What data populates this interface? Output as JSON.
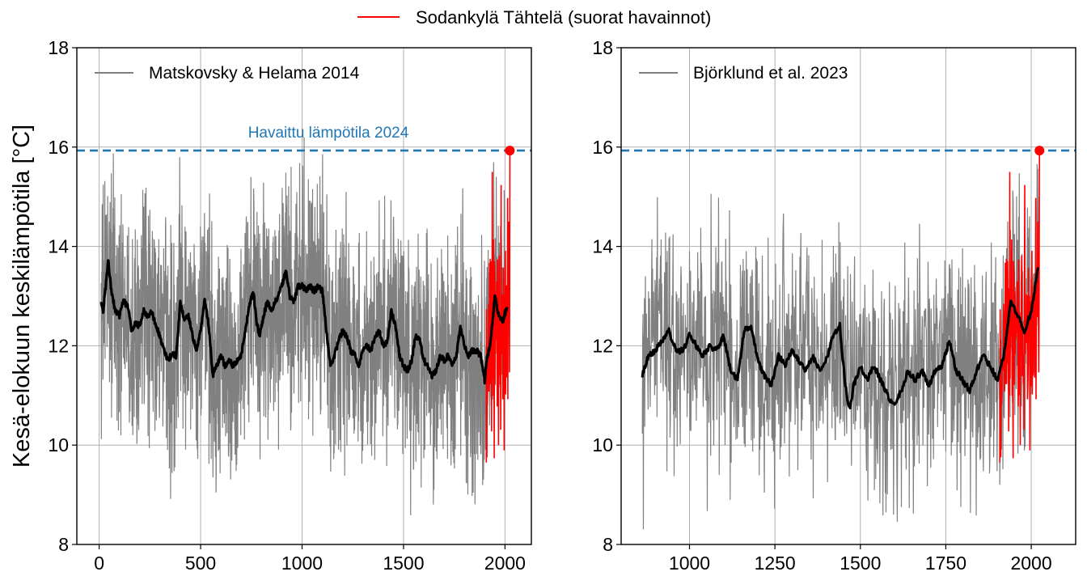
{
  "colors": {
    "proxy": "#808080",
    "observed": "#ff0000",
    "smooth": "#000000",
    "threshold": "#1f77b4",
    "grid": "#b0b0b0"
  },
  "figure": {
    "top_legend": "Sodankylä Tähtelä (suorat havainnot)",
    "shared_ylabel": "Kesä-elokuun keskilämpötila [°C]"
  },
  "chart_data": [
    {
      "type": "line",
      "legend": "Matskovsky & Helama 2014",
      "xlim": [
        -110,
        2130
      ],
      "ylim": [
        8,
        18
      ],
      "xticks": [
        0,
        500,
        1000,
        1500,
        2000
      ],
      "yticks": [
        8,
        10,
        12,
        14,
        16,
        18
      ],
      "grid": true,
      "proxy_x_range": [
        10,
        2000
      ],
      "observed_x_range": [
        1908,
        2024
      ],
      "threshold": 15.93,
      "threshold_label": "Havaittu lämpötila 2024",
      "highlight_point": [
        2024,
        15.93
      ],
      "smoothed_anchors": [
        [
          10,
          12.85
        ],
        [
          20,
          12.7
        ],
        [
          30,
          13.1
        ],
        [
          45,
          13.7
        ],
        [
          60,
          13.1
        ],
        [
          80,
          12.7
        ],
        [
          100,
          12.6
        ],
        [
          120,
          12.9
        ],
        [
          140,
          12.8
        ],
        [
          160,
          12.3
        ],
        [
          180,
          12.45
        ],
        [
          200,
          12.4
        ],
        [
          220,
          12.7
        ],
        [
          240,
          12.6
        ],
        [
          260,
          12.7
        ],
        [
          280,
          12.4
        ],
        [
          300,
          12.2
        ],
        [
          320,
          11.9
        ],
        [
          340,
          11.7
        ],
        [
          360,
          11.85
        ],
        [
          380,
          11.8
        ],
        [
          400,
          12.9
        ],
        [
          420,
          12.5
        ],
        [
          440,
          12.6
        ],
        [
          460,
          12.2
        ],
        [
          480,
          11.9
        ],
        [
          500,
          12.3
        ],
        [
          520,
          12.9
        ],
        [
          540,
          12.4
        ],
        [
          560,
          11.4
        ],
        [
          580,
          11.6
        ],
        [
          600,
          11.8
        ],
        [
          620,
          11.6
        ],
        [
          640,
          11.7
        ],
        [
          660,
          11.6
        ],
        [
          680,
          11.7
        ],
        [
          700,
          11.8
        ],
        [
          720,
          12.3
        ],
        [
          740,
          12.8
        ],
        [
          760,
          13.1
        ],
        [
          775,
          12.5
        ],
        [
          790,
          12.2
        ],
        [
          810,
          12.6
        ],
        [
          830,
          12.9
        ],
        [
          850,
          12.7
        ],
        [
          870,
          12.9
        ],
        [
          900,
          13.2
        ],
        [
          920,
          13.5
        ],
        [
          940,
          13.0
        ],
        [
          960,
          12.9
        ],
        [
          980,
          13.2
        ],
        [
          1000,
          13.2
        ],
        [
          1020,
          13.1
        ],
        [
          1040,
          13.2
        ],
        [
          1060,
          13.1
        ],
        [
          1080,
          13.2
        ],
        [
          1100,
          13.1
        ],
        [
          1120,
          12.3
        ],
        [
          1140,
          11.6
        ],
        [
          1160,
          11.8
        ],
        [
          1180,
          12.1
        ],
        [
          1200,
          12.3
        ],
        [
          1220,
          12.2
        ],
        [
          1240,
          11.9
        ],
        [
          1260,
          11.8
        ],
        [
          1280,
          11.6
        ],
        [
          1300,
          11.9
        ],
        [
          1320,
          12.0
        ],
        [
          1340,
          11.9
        ],
        [
          1360,
          12.2
        ],
        [
          1380,
          12.3
        ],
        [
          1400,
          12.0
        ],
        [
          1420,
          12.1
        ],
        [
          1440,
          12.7
        ],
        [
          1460,
          12.4
        ],
        [
          1480,
          11.8
        ],
        [
          1500,
          11.6
        ],
        [
          1520,
          11.5
        ],
        [
          1540,
          11.7
        ],
        [
          1560,
          12.2
        ],
        [
          1580,
          12.1
        ],
        [
          1600,
          11.7
        ],
        [
          1620,
          11.6
        ],
        [
          1640,
          11.4
        ],
        [
          1660,
          11.5
        ],
        [
          1680,
          11.8
        ],
        [
          1700,
          11.7
        ],
        [
          1720,
          11.8
        ],
        [
          1740,
          11.6
        ],
        [
          1760,
          11.8
        ],
        [
          1780,
          12.4
        ],
        [
          1800,
          12.0
        ],
        [
          1820,
          11.8
        ],
        [
          1840,
          11.9
        ],
        [
          1860,
          11.9
        ],
        [
          1880,
          11.8
        ],
        [
          1900,
          11.3
        ],
        [
          1910,
          11.7
        ],
        [
          1930,
          12.1
        ],
        [
          1950,
          13.0
        ],
        [
          1970,
          12.6
        ],
        [
          1990,
          12.5
        ],
        [
          2010,
          12.8
        ]
      ]
    },
    {
      "type": "line",
      "legend": "Björklund et al. 2023",
      "xlim": [
        800,
        2130
      ],
      "ylim": [
        8,
        18
      ],
      "xticks": [
        1000,
        1250,
        1500,
        1750,
        2000
      ],
      "yticks": [
        8,
        10,
        12,
        14,
        16,
        18
      ],
      "grid": true,
      "proxy_x_range": [
        862,
        2024
      ],
      "observed_x_range": [
        1908,
        2024
      ],
      "threshold": 15.93,
      "threshold_label": "",
      "highlight_point": [
        2024,
        15.93
      ],
      "smoothed_anchors": [
        [
          862,
          11.4
        ],
        [
          880,
          11.8
        ],
        [
          900,
          11.9
        ],
        [
          920,
          12.1
        ],
        [
          940,
          12.3
        ],
        [
          960,
          11.9
        ],
        [
          980,
          11.9
        ],
        [
          1000,
          12.2
        ],
        [
          1020,
          12.0
        ],
        [
          1040,
          11.8
        ],
        [
          1060,
          12.0
        ],
        [
          1080,
          11.9
        ],
        [
          1100,
          12.2
        ],
        [
          1120,
          11.5
        ],
        [
          1140,
          11.3
        ],
        [
          1160,
          12.3
        ],
        [
          1180,
          12.4
        ],
        [
          1200,
          11.7
        ],
        [
          1220,
          11.4
        ],
        [
          1240,
          11.2
        ],
        [
          1260,
          11.8
        ],
        [
          1280,
          11.6
        ],
        [
          1300,
          11.9
        ],
        [
          1320,
          11.7
        ],
        [
          1340,
          11.5
        ],
        [
          1360,
          11.8
        ],
        [
          1380,
          11.5
        ],
        [
          1400,
          11.7
        ],
        [
          1420,
          12.2
        ],
        [
          1440,
          12.4
        ],
        [
          1450,
          11.6
        ],
        [
          1460,
          11.0
        ],
        [
          1470,
          10.7
        ],
        [
          1480,
          11.2
        ],
        [
          1500,
          11.6
        ],
        [
          1520,
          11.3
        ],
        [
          1540,
          11.6
        ],
        [
          1560,
          11.3
        ],
        [
          1580,
          11.0
        ],
        [
          1600,
          10.8
        ],
        [
          1620,
          11.1
        ],
        [
          1640,
          11.5
        ],
        [
          1660,
          11.3
        ],
        [
          1680,
          11.5
        ],
        [
          1700,
          11.2
        ],
        [
          1720,
          11.5
        ],
        [
          1740,
          11.6
        ],
        [
          1760,
          12.1
        ],
        [
          1780,
          11.5
        ],
        [
          1800,
          11.3
        ],
        [
          1820,
          11.1
        ],
        [
          1840,
          11.5
        ],
        [
          1860,
          11.8
        ],
        [
          1880,
          11.6
        ],
        [
          1900,
          11.3
        ],
        [
          1920,
          11.8
        ],
        [
          1940,
          12.9
        ],
        [
          1960,
          12.6
        ],
        [
          1980,
          12.3
        ],
        [
          2000,
          12.7
        ],
        [
          2020,
          13.6
        ]
      ]
    }
  ]
}
